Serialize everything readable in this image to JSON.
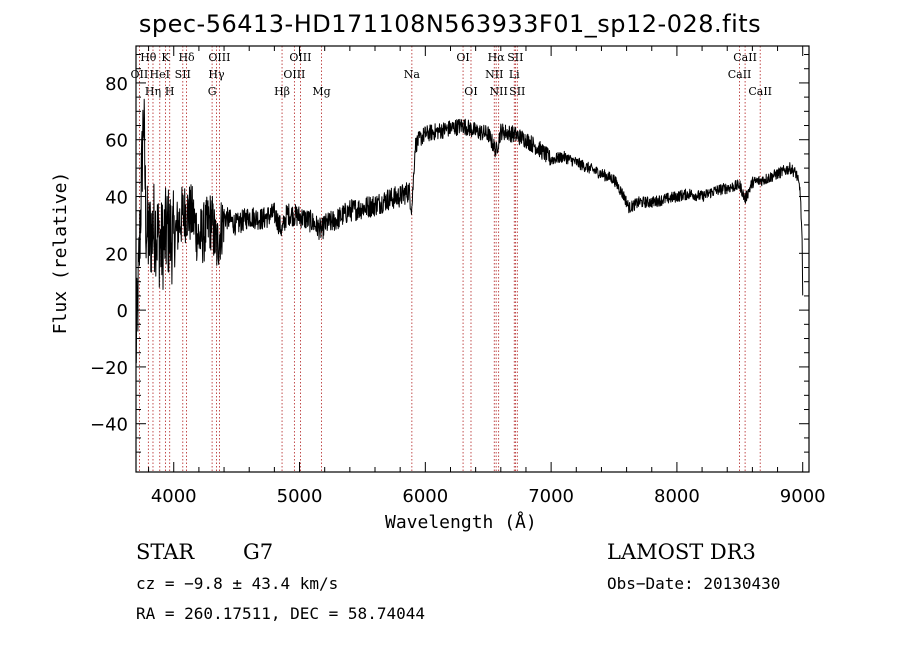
{
  "chart_data": {
    "type": "line",
    "title": "spec-56413-HD171108N563933F01_sp12-028.fits",
    "xlabel": "Wavelength (Å)",
    "ylabel": "Flux (relative)",
    "xlim": [
      3700,
      9050
    ],
    "ylim": [
      -57,
      93
    ],
    "xticks": [
      4000,
      5000,
      6000,
      7000,
      8000,
      9000
    ],
    "yticks": [
      -40,
      -20,
      0,
      20,
      40,
      60,
      80
    ],
    "xtick_labels": [
      "4000",
      "5000",
      "6000",
      "7000",
      "8000",
      "9000"
    ],
    "ytick_labels": [
      "−40",
      "−20",
      "0",
      "20",
      "40",
      "60",
      "80"
    ],
    "spectrum_anchor_points": [
      [
        3700,
        -15
      ],
      [
        3720,
        10
      ],
      [
        3740,
        40
      ],
      [
        3760,
        70
      ],
      [
        3780,
        30
      ],
      [
        3800,
        25
      ],
      [
        3850,
        30
      ],
      [
        3900,
        22
      ],
      [
        3950,
        28
      ],
      [
        4000,
        25
      ],
      [
        4050,
        32
      ],
      [
        4100,
        35
      ],
      [
        4150,
        33
      ],
      [
        4200,
        25
      ],
      [
        4250,
        28
      ],
      [
        4300,
        32
      ],
      [
        4340,
        22
      ],
      [
        4400,
        33
      ],
      [
        4500,
        30
      ],
      [
        4600,
        33
      ],
      [
        4700,
        32
      ],
      [
        4800,
        34
      ],
      [
        4861,
        28
      ],
      [
        4900,
        34
      ],
      [
        5000,
        33
      ],
      [
        5100,
        31
      ],
      [
        5175,
        28
      ],
      [
        5200,
        30
      ],
      [
        5300,
        32
      ],
      [
        5400,
        35
      ],
      [
        5500,
        36
      ],
      [
        5600,
        37
      ],
      [
        5700,
        39
      ],
      [
        5800,
        40
      ],
      [
        5870,
        42
      ],
      [
        5893,
        36
      ],
      [
        5920,
        58
      ],
      [
        5950,
        60
      ],
      [
        6000,
        62
      ],
      [
        6100,
        63
      ],
      [
        6200,
        64
      ],
      [
        6300,
        65
      ],
      [
        6400,
        63
      ],
      [
        6500,
        62
      ],
      [
        6563,
        56
      ],
      [
        6600,
        63
      ],
      [
        6700,
        62
      ],
      [
        6800,
        60
      ],
      [
        6900,
        57
      ],
      [
        7000,
        53
      ],
      [
        7100,
        54
      ],
      [
        7200,
        52
      ],
      [
        7300,
        50
      ],
      [
        7400,
        48
      ],
      [
        7500,
        46
      ],
      [
        7580,
        40
      ],
      [
        7620,
        36
      ],
      [
        7700,
        38
      ],
      [
        7800,
        38
      ],
      [
        7900,
        39
      ],
      [
        8000,
        40
      ],
      [
        8100,
        41
      ],
      [
        8200,
        40
      ],
      [
        8300,
        42
      ],
      [
        8400,
        43
      ],
      [
        8500,
        44
      ],
      [
        8542,
        39
      ],
      [
        8600,
        45
      ],
      [
        8700,
        46
      ],
      [
        8800,
        48
      ],
      [
        8900,
        50
      ],
      [
        8950,
        48
      ],
      [
        8980,
        42
      ],
      [
        8995,
        25
      ],
      [
        9000,
        5
      ]
    ],
    "emission_lines": [
      {
        "label": "OII",
        "wavelength": 3727,
        "row": 2
      },
      {
        "label": "Hθ",
        "wavelength": 3798,
        "row": 1
      },
      {
        "label": "Hη",
        "wavelength": 3835,
        "row": 3
      },
      {
        "label": "HeI",
        "wavelength": 3889,
        "row": 2
      },
      {
        "label": "K",
        "wavelength": 3934,
        "row": 1
      },
      {
        "label": "H",
        "wavelength": 3968,
        "row": 3
      },
      {
        "label": "SII",
        "wavelength": 4072,
        "row": 2
      },
      {
        "label": "Hδ",
        "wavelength": 4102,
        "row": 1
      },
      {
        "label": "G",
        "wavelength": 4305,
        "row": 3
      },
      {
        "label": "Hγ",
        "wavelength": 4340,
        "row": 2
      },
      {
        "label": "OIII",
        "wavelength": 4363,
        "row": 1
      },
      {
        "label": "Hβ",
        "wavelength": 4861,
        "row": 3
      },
      {
        "label": "OIII",
        "wavelength": 4959,
        "row": 2
      },
      {
        "label": "OIII",
        "wavelength": 5007,
        "row": 1
      },
      {
        "label": "Mg",
        "wavelength": 5175,
        "row": 3
      },
      {
        "label": "Na",
        "wavelength": 5893,
        "row": 2
      },
      {
        "label": "OI",
        "wavelength": 6300,
        "row": 1
      },
      {
        "label": "OI",
        "wavelength": 6363,
        "row": 3
      },
      {
        "label": "NII",
        "wavelength": 6548,
        "row": 2
      },
      {
        "label": "Hα",
        "wavelength": 6563,
        "row": 1
      },
      {
        "label": "NII",
        "wavelength": 6583,
        "row": 3
      },
      {
        "label": "Li",
        "wavelength": 6707,
        "row": 2
      },
      {
        "label": "SII",
        "wavelength": 6716,
        "row": 1
      },
      {
        "label": "SII",
        "wavelength": 6731,
        "row": 3
      },
      {
        "label": "CaII",
        "wavelength": 8498,
        "row": 2
      },
      {
        "label": "CaII",
        "wavelength": 8542,
        "row": 1
      },
      {
        "label": "CaII",
        "wavelength": 8662,
        "row": 3
      }
    ],
    "line_color": "#000000",
    "marker_line_color": "#b22222"
  },
  "info": {
    "object_class": "STAR",
    "object_subclass": "G7",
    "survey": "LAMOST DR3",
    "cz": "cz = −9.8 ± 43.4 km/s",
    "obs_date": "Obs−Date: 20130430",
    "radec": "RA = 260.17511, DEC =  58.74044"
  }
}
